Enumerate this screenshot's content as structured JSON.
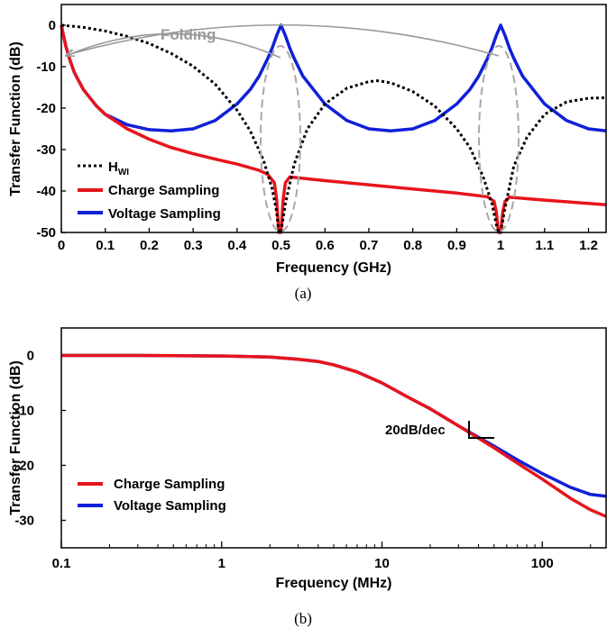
{
  "colors": {
    "charge": "#e8141c",
    "voltage": "#1020d8",
    "hwi": "#000000",
    "fold": "#999999",
    "ellipse": "#a8a8a8"
  },
  "chart_data": [
    {
      "type": "line",
      "panel_label": "(a)",
      "xlabel": "Frequency (GHz)",
      "ylabel": "Transfer Function (dB)",
      "xlim": [
        0,
        1.24
      ],
      "ylim": [
        -50,
        5
      ],
      "xticks": [
        0,
        0.1,
        0.2,
        0.3,
        0.4,
        0.5,
        0.6,
        0.7,
        0.8,
        0.9,
        1,
        1.1,
        1.2
      ],
      "xtick_labels": [
        "0",
        "0.1",
        "0.2",
        "0.3",
        "0.4",
        "0.5",
        "0.6",
        "0.7",
        "0.8",
        "0.9",
        "1",
        "1.1",
        "1.2"
      ],
      "yticks": [
        0,
        -10,
        -20,
        -30,
        -40,
        -50
      ],
      "ytick_labels": [
        "0",
        "-10",
        "-20",
        "-30",
        "-40",
        "-50"
      ],
      "legend": {
        "placement": "lower-left",
        "hwi_main": "H",
        "hwi_sub": "WI"
      },
      "annotation": "Folding",
      "series": [
        {
          "name": "H_WI",
          "style": "dotted",
          "x": [
            0,
            0.05,
            0.1,
            0.15,
            0.2,
            0.25,
            0.3,
            0.35,
            0.4,
            0.43,
            0.46,
            0.48,
            0.49,
            0.495,
            0.5,
            0.51,
            0.53,
            0.56,
            0.6,
            0.65,
            0.7,
            0.72,
            0.75,
            0.8,
            0.85,
            0.9,
            0.93,
            0.96,
            0.98,
            0.99,
            0.995,
            1.0,
            1.01,
            1.03,
            1.06,
            1.1,
            1.15,
            1.2,
            1.24
          ],
          "y": [
            0,
            -0.5,
            -1.4,
            -2.7,
            -4.4,
            -6.8,
            -9.9,
            -14.2,
            -20.5,
            -25.5,
            -32.5,
            -39.5,
            -45,
            -50,
            -50,
            -43,
            -33.5,
            -25,
            -19,
            -15.2,
            -13.6,
            -13.4,
            -13.9,
            -16,
            -19.5,
            -25,
            -29.5,
            -36.5,
            -43,
            -48,
            -50,
            -50,
            -44,
            -34,
            -27,
            -21.5,
            -18.5,
            -17.6,
            -17.5
          ]
        },
        {
          "name": "Charge Sampling",
          "style": "solid",
          "x": [
            0,
            0.005,
            0.01,
            0.02,
            0.03,
            0.05,
            0.08,
            0.1,
            0.15,
            0.2,
            0.25,
            0.3,
            0.35,
            0.4,
            0.45,
            0.47,
            0.485,
            0.49,
            0.495,
            0.5,
            0.505,
            0.51,
            0.52,
            0.6,
            0.7,
            0.8,
            0.9,
            0.97,
            0.985,
            0.99,
            0.995,
            1.0,
            1.005,
            1.01,
            1.02,
            1.1,
            1.2,
            1.24
          ],
          "y": [
            0,
            -2.5,
            -5,
            -8.5,
            -11.5,
            -15.5,
            -19.5,
            -21.5,
            -25,
            -27.5,
            -29.5,
            -31,
            -32.3,
            -33.5,
            -35,
            -36,
            -38,
            -42,
            -50,
            -50,
            -42,
            -38,
            -36.6,
            -37.5,
            -38.5,
            -39.5,
            -40.5,
            -41.4,
            -42.5,
            -45,
            -50,
            -50,
            -45,
            -42.5,
            -41.5,
            -42.2,
            -43,
            -43.3
          ]
        },
        {
          "name": "Voltage Sampling",
          "style": "solid",
          "x": [
            0,
            0.005,
            0.01,
            0.02,
            0.03,
            0.05,
            0.08,
            0.1,
            0.15,
            0.2,
            0.25,
            0.3,
            0.35,
            0.4,
            0.43,
            0.45,
            0.47,
            0.48,
            0.49,
            0.5,
            0.51,
            0.52,
            0.53,
            0.55,
            0.6,
            0.65,
            0.7,
            0.75,
            0.8,
            0.85,
            0.9,
            0.93,
            0.95,
            0.97,
            0.98,
            0.99,
            1.0,
            1.01,
            1.02,
            1.03,
            1.05,
            1.1,
            1.15,
            1.2,
            1.24
          ],
          "y": [
            0,
            -2.5,
            -5,
            -8.5,
            -11.5,
            -15.5,
            -19.5,
            -21.5,
            -24,
            -25.2,
            -25.5,
            -25,
            -23,
            -19,
            -15.5,
            -12.3,
            -8,
            -5.5,
            -2.5,
            0,
            -2.5,
            -5.5,
            -8,
            -12.3,
            -19,
            -23,
            -25,
            -25.5,
            -25,
            -23,
            -19,
            -15.5,
            -12.3,
            -8,
            -5.5,
            -2.5,
            0,
            -2.5,
            -5.5,
            -8,
            -12.3,
            -19,
            -23,
            -25,
            -25.5
          ]
        }
      ]
    },
    {
      "type": "line",
      "panel_label": "(b)",
      "xlabel": "Frequency (MHz)",
      "ylabel": "Transfer Function (dB)",
      "xscale": "log",
      "xlim": [
        0.1,
        250
      ],
      "ylim": [
        -35,
        5
      ],
      "xticks": [
        0.1,
        1,
        10,
        100
      ],
      "xtick_labels": [
        "0.1",
        "1",
        "10",
        "100"
      ],
      "yticks": [
        0,
        -10,
        -20,
        -30
      ],
      "ytick_labels": [
        "0",
        "-10",
        "-20",
        "-30"
      ],
      "legend": {
        "placement": "lower-left"
      },
      "annotation": "20dB/dec",
      "series": [
        {
          "name": "Charge Sampling",
          "x": [
            0.1,
            0.3,
            1,
            2,
            3,
            4,
            5,
            7,
            10,
            15,
            20,
            30,
            50,
            70,
            100,
            150,
            200,
            250
          ],
          "y": [
            0,
            0,
            -0.1,
            -0.3,
            -0.7,
            -1.1,
            -1.7,
            -3,
            -5,
            -7.8,
            -9.7,
            -12.8,
            -16.8,
            -19.6,
            -22.5,
            -26,
            -28.1,
            -29.3
          ]
        },
        {
          "name": "Voltage Sampling",
          "x": [
            0.1,
            0.3,
            1,
            2,
            3,
            4,
            5,
            7,
            10,
            15,
            20,
            30,
            50,
            70,
            100,
            150,
            200,
            250
          ],
          "y": [
            0,
            0,
            -0.1,
            -0.3,
            -0.7,
            -1.1,
            -1.7,
            -3,
            -5,
            -7.8,
            -9.7,
            -12.8,
            -16.5,
            -19,
            -21.5,
            -24,
            -25.3,
            -25.6
          ]
        }
      ]
    }
  ]
}
